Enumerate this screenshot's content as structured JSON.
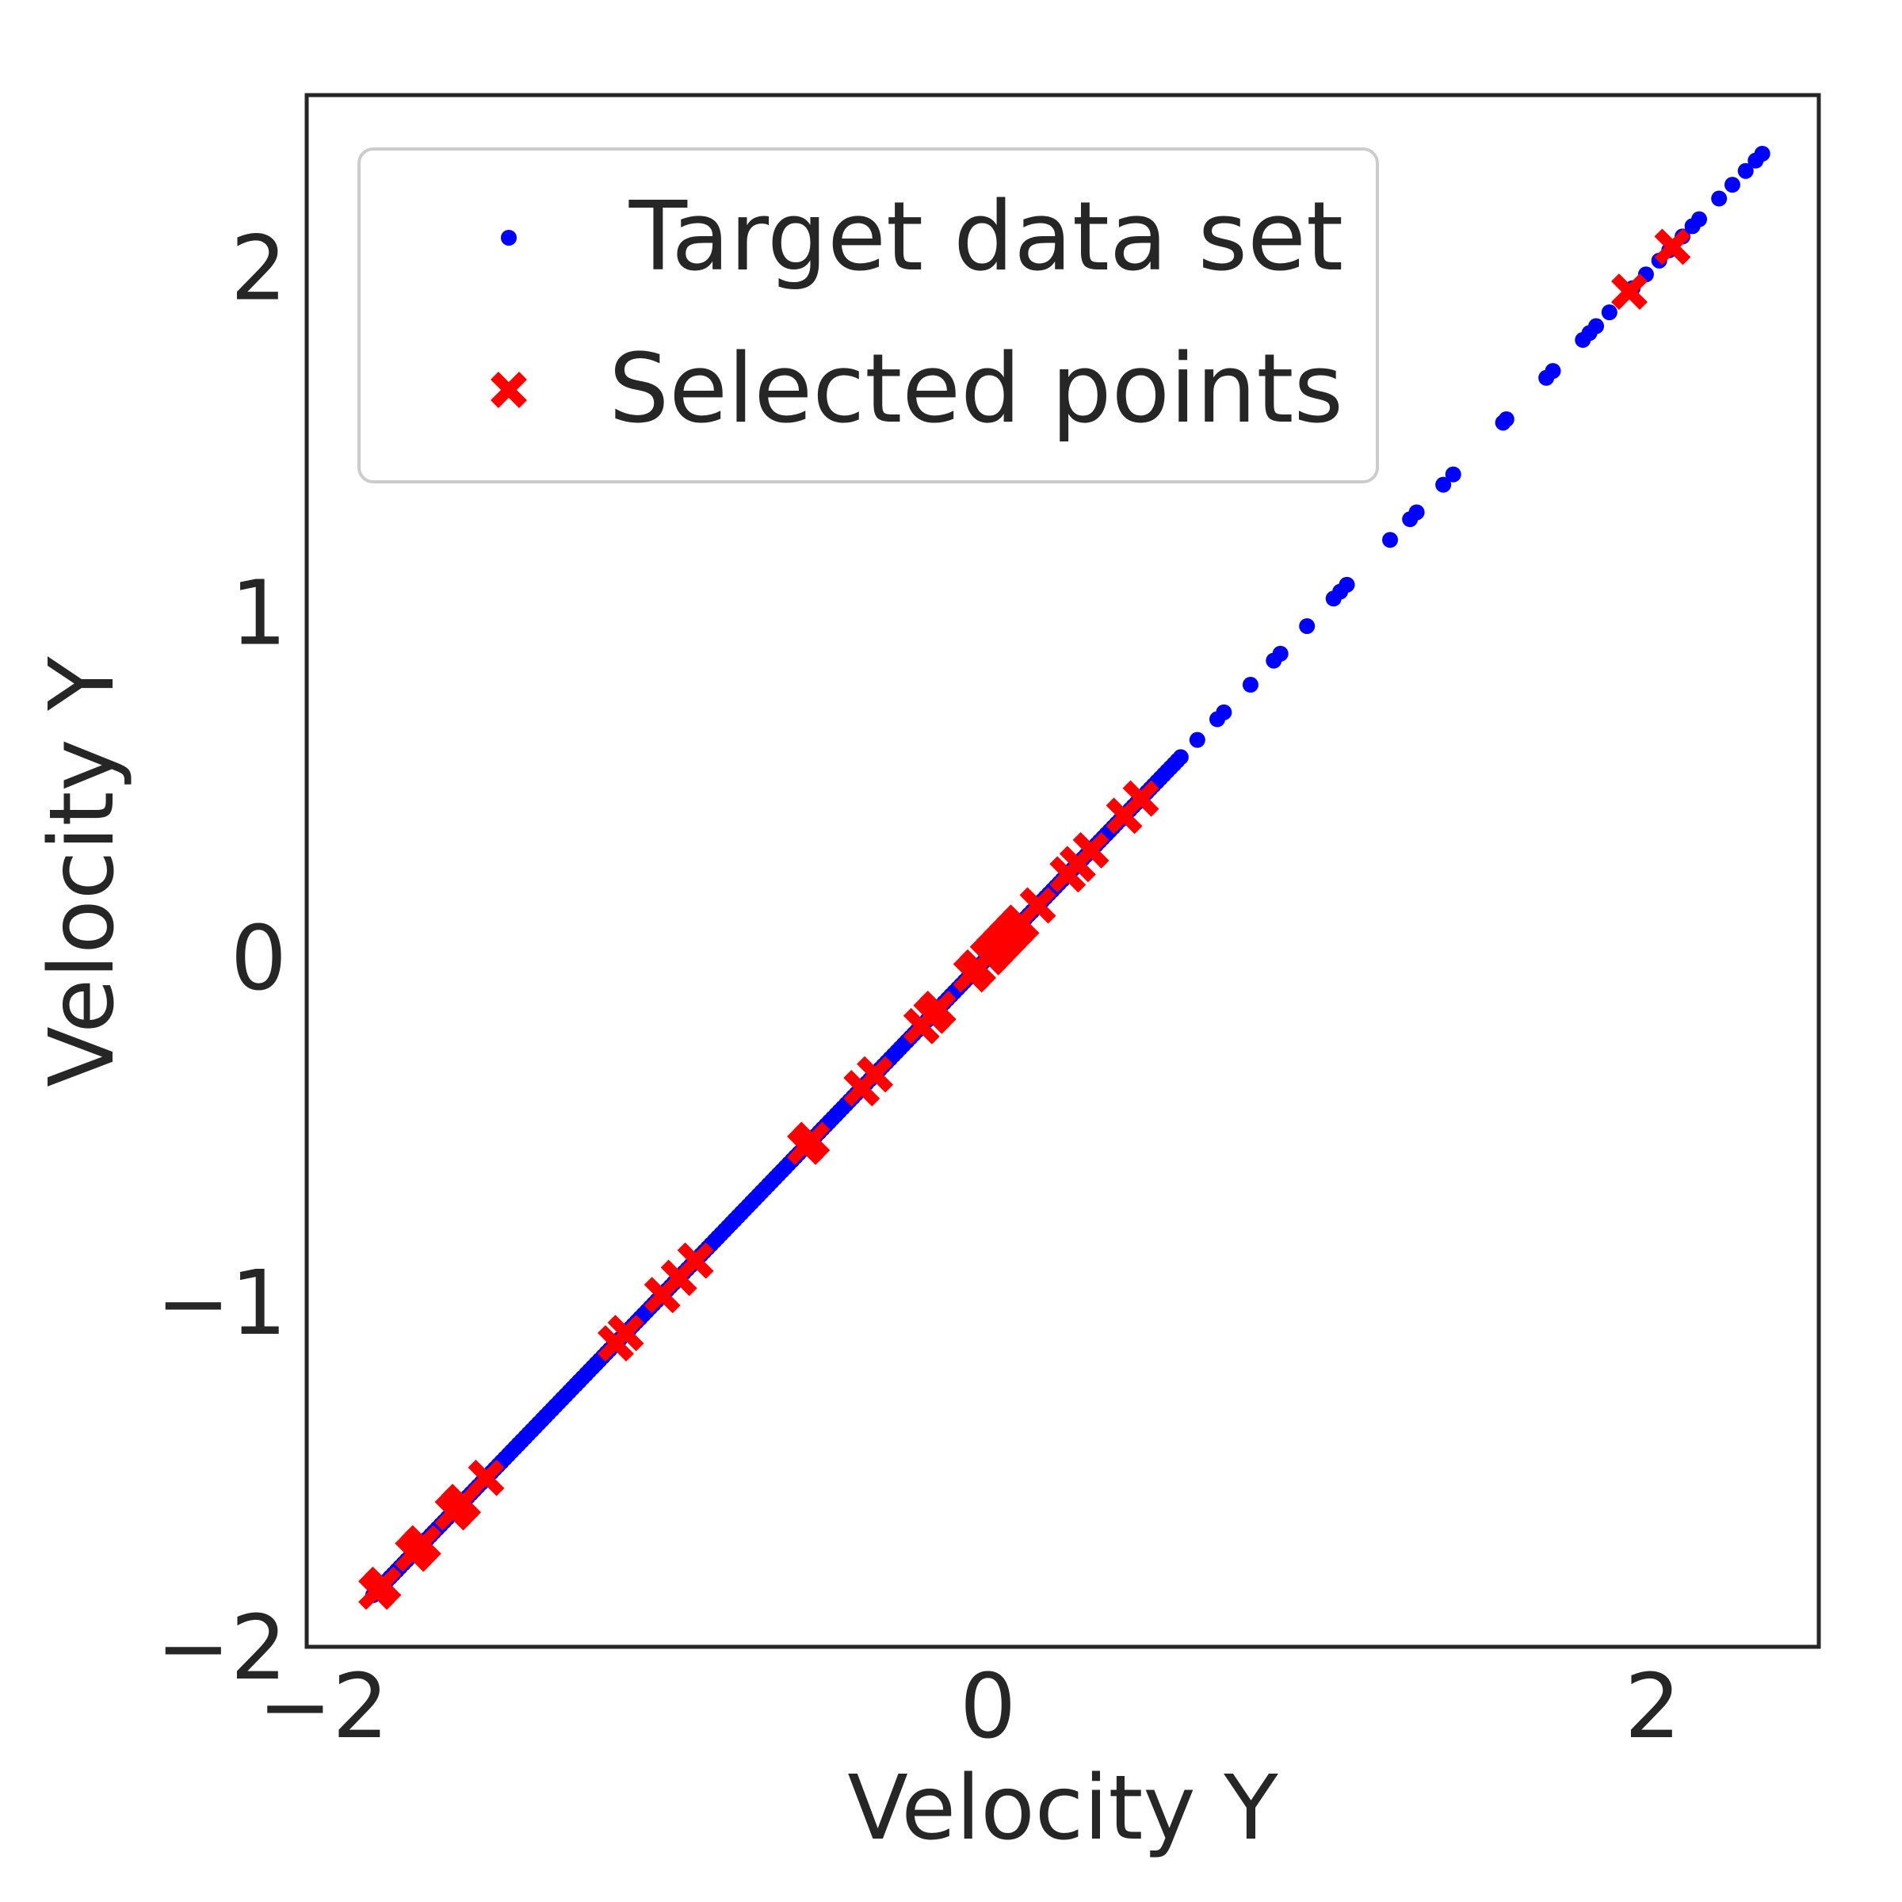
{
  "chart_data": {
    "type": "scatter",
    "title": "",
    "xlabel": "Velocity Y",
    "ylabel": "Velocity Y",
    "xlim": [
      -2.05,
      2.5
    ],
    "ylim": [
      -2.0,
      2.5
    ],
    "xticks": [
      -2,
      0,
      2
    ],
    "yticks": [
      -2,
      -1,
      0,
      1,
      2
    ],
    "grid": false,
    "legend_position": "top-left",
    "series": [
      {
        "name": "Target data set",
        "marker": "dot",
        "color": "#0000ff",
        "points_dense_segment": {
          "from": -1.85,
          "to": 0.58,
          "count": 240
        },
        "points": [
          [
            0.63,
            0.63
          ],
          [
            0.69,
            0.69
          ],
          [
            0.71,
            0.71
          ],
          [
            0.79,
            0.79
          ],
          [
            0.86,
            0.86
          ],
          [
            0.88,
            0.88
          ],
          [
            0.96,
            0.96
          ],
          [
            1.04,
            1.04
          ],
          [
            1.06,
            1.06
          ],
          [
            1.08,
            1.08
          ],
          [
            1.21,
            1.21
          ],
          [
            1.27,
            1.27
          ],
          [
            1.29,
            1.29
          ],
          [
            1.37,
            1.37
          ],
          [
            1.4,
            1.4
          ],
          [
            1.55,
            1.55
          ],
          [
            1.56,
            1.56
          ],
          [
            1.68,
            1.68
          ],
          [
            1.7,
            1.7
          ],
          [
            1.79,
            1.79
          ],
          [
            1.81,
            1.81
          ],
          [
            1.83,
            1.83
          ],
          [
            1.87,
            1.87
          ],
          [
            1.94,
            1.94
          ],
          [
            1.98,
            1.98
          ],
          [
            2.02,
            2.02
          ],
          [
            2.05,
            2.05
          ],
          [
            2.09,
            2.09
          ],
          [
            2.12,
            2.12
          ],
          [
            2.14,
            2.14
          ],
          [
            2.2,
            2.2
          ],
          [
            2.24,
            2.24
          ],
          [
            2.28,
            2.28
          ],
          [
            2.31,
            2.31
          ],
          [
            2.33,
            2.33
          ]
        ]
      },
      {
        "name": "Selected points",
        "marker": "x",
        "color": "#ff0000",
        "points": [
          [
            -1.84,
            -1.84
          ],
          [
            -1.82,
            -1.82
          ],
          [
            -1.73,
            -1.73
          ],
          [
            -1.71,
            -1.71
          ],
          [
            -1.7,
            -1.7
          ],
          [
            -1.61,
            -1.61
          ],
          [
            -1.59,
            -1.59
          ],
          [
            -1.58,
            -1.58
          ],
          [
            -1.51,
            -1.51
          ],
          [
            -1.12,
            -1.12
          ],
          [
            -1.09,
            -1.09
          ],
          [
            -0.98,
            -0.98
          ],
          [
            -0.93,
            -0.93
          ],
          [
            -0.88,
            -0.88
          ],
          [
            -0.55,
            -0.55
          ],
          [
            -0.53,
            -0.53
          ],
          [
            -0.38,
            -0.38
          ],
          [
            -0.34,
            -0.34
          ],
          [
            -0.2,
            -0.2
          ],
          [
            -0.17,
            -0.17
          ],
          [
            -0.15,
            -0.15
          ],
          [
            -0.05,
            -0.05
          ],
          [
            -0.03,
            -0.03
          ],
          [
            0.0,
            0.0
          ],
          [
            0.02,
            0.02
          ],
          [
            0.04,
            0.04
          ],
          [
            0.06,
            0.06
          ],
          [
            0.08,
            0.08
          ],
          [
            0.1,
            0.1
          ],
          [
            0.15,
            0.15
          ],
          [
            0.24,
            0.24
          ],
          [
            0.27,
            0.27
          ],
          [
            0.31,
            0.31
          ],
          [
            0.41,
            0.41
          ],
          [
            0.46,
            0.46
          ],
          [
            1.93,
            1.93
          ],
          [
            2.06,
            2.06
          ]
        ]
      }
    ]
  }
}
